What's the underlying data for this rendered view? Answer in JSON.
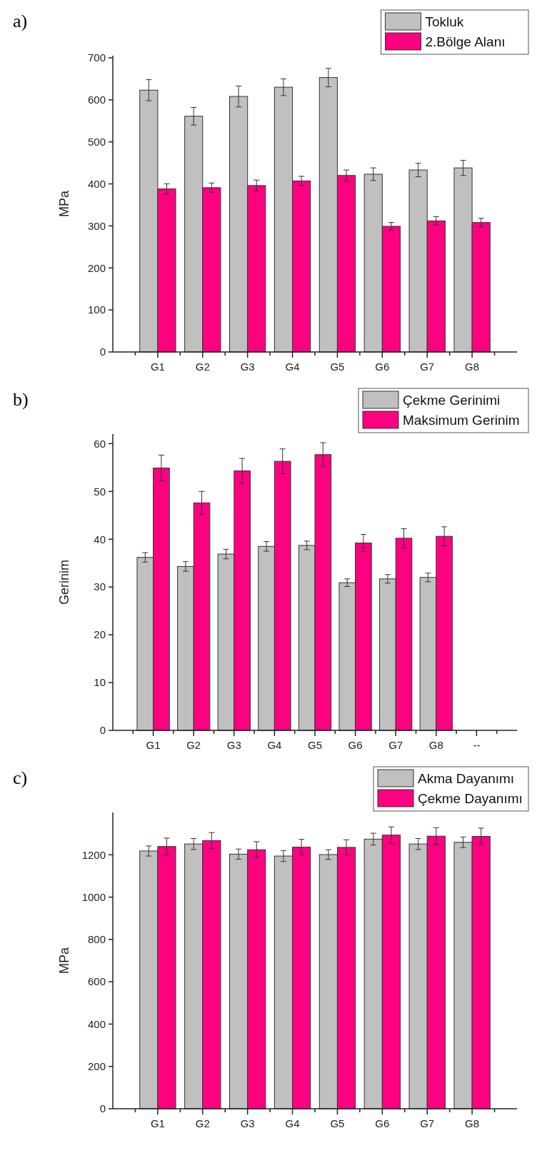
{
  "chart_data": [
    {
      "type": "bar",
      "title": "a)",
      "ylabel": "MPa",
      "categories": [
        "G1",
        "G2",
        "G3",
        "G4",
        "G5",
        "G6",
        "G7",
        "G8"
      ],
      "ylim": [
        0,
        705
      ],
      "yticks": [
        0,
        100,
        200,
        300,
        400,
        500,
        600,
        700
      ],
      "legend": "top right",
      "grid": false,
      "series": [
        {
          "name": "Tokluk",
          "color": "#c0c0c0",
          "values": [
            623,
            561,
            608,
            630,
            653,
            423,
            433,
            438
          ],
          "errors": [
            25,
            21,
            25,
            20,
            22,
            15,
            16,
            18
          ]
        },
        {
          "name": "2.Bölge Alanı",
          "color": "#ff0080",
          "values": [
            388,
            391,
            396,
            407,
            420,
            299,
            312,
            308
          ],
          "errors": [
            12,
            11,
            13,
            11,
            13,
            9,
            10,
            10
          ]
        }
      ]
    },
    {
      "type": "bar",
      "title": "b)",
      "ylabel": "Gerinim",
      "categories": [
        "G1",
        "G2",
        "G3",
        "G4",
        "G5",
        "G6",
        "G7",
        "G8",
        "--"
      ],
      "ylim": [
        0,
        62
      ],
      "yticks": [
        0,
        10,
        20,
        30,
        40,
        50,
        60
      ],
      "legend": "top right",
      "grid": false,
      "series": [
        {
          "name": "Çekme Gerinimi",
          "color": "#c0c0c0",
          "values": [
            36.2,
            34.3,
            36.9,
            38.5,
            38.7,
            30.9,
            31.7,
            32.0,
            null
          ],
          "errors": [
            1.0,
            1.0,
            1.0,
            1.0,
            0.9,
            0.8,
            0.9,
            0.9,
            null
          ]
        },
        {
          "name": "Maksimum Gerinim",
          "color": "#ff0080",
          "values": [
            54.9,
            47.6,
            54.3,
            56.3,
            57.7,
            39.2,
            40.2,
            40.6,
            null
          ],
          "errors": [
            2.7,
            2.4,
            2.6,
            2.6,
            2.5,
            1.8,
            2.0,
            2.0,
            null
          ]
        }
      ]
    },
    {
      "type": "bar",
      "title": "c)",
      "ylabel": "MPa",
      "categories": [
        "G1",
        "G2",
        "G3",
        "G4",
        "G5",
        "G6",
        "G7",
        "G8"
      ],
      "ylim": [
        0,
        1400
      ],
      "yticks": [
        0,
        200,
        400,
        600,
        800,
        1000,
        1200
      ],
      "legend": "top right",
      "grid": false,
      "series": [
        {
          "name": "Akma Dayanımı",
          "color": "#c0c0c0",
          "values": [
            1218,
            1251,
            1203,
            1194,
            1201,
            1274,
            1251,
            1259
          ],
          "errors": [
            24,
            26,
            24,
            26,
            23,
            28,
            26,
            25
          ]
        },
        {
          "name": "Çekme Dayanımı",
          "color": "#ff0080",
          "values": [
            1239,
            1267,
            1224,
            1236,
            1235,
            1293,
            1288,
            1287
          ],
          "errors": [
            40,
            38,
            38,
            37,
            36,
            39,
            40,
            39
          ]
        }
      ]
    }
  ]
}
